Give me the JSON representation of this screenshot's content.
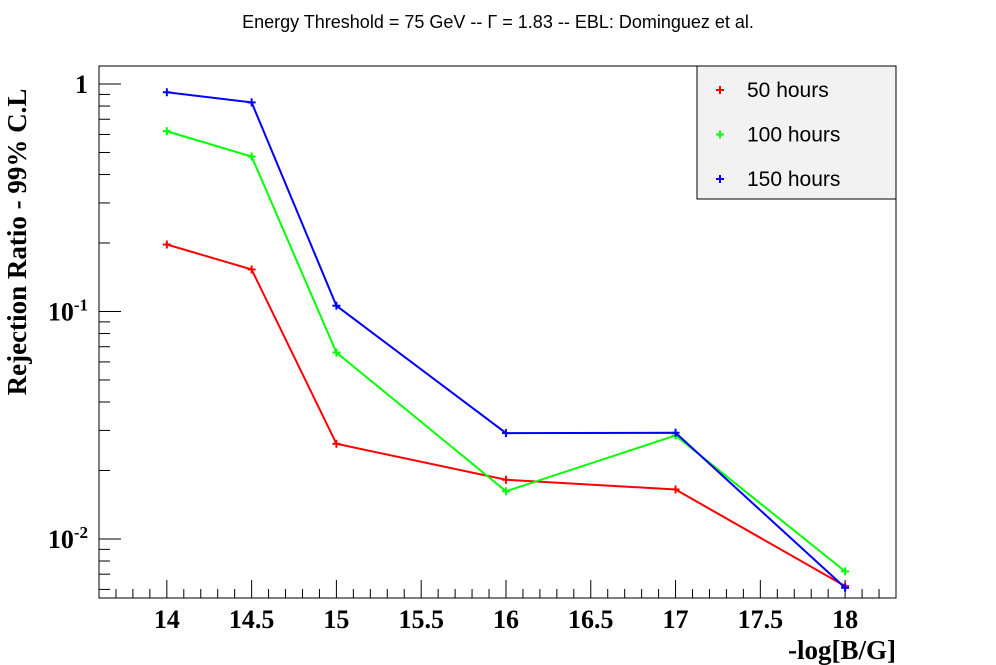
{
  "chart_data": {
    "type": "line",
    "title": "Energy Threshold = 75 GeV -- Γ = 1.83 -- EBL: Dominguez et al.",
    "xlabel": "-log[B/G]",
    "ylabel": "Rejection Ratio - 99% C.L",
    "y_scale": "log",
    "xlim": [
      13.6,
      18.3
    ],
    "ylim": [
      0.0055,
      1.2
    ],
    "x_ticks": [
      "14",
      "14.5",
      "15",
      "15.5",
      "16",
      "16.5",
      "17",
      "17.5",
      "18"
    ],
    "y_ticks": [
      {
        "value": 1,
        "base": "1",
        "exp": ""
      },
      {
        "value": 0.1,
        "base": "10",
        "exp": "-1"
      },
      {
        "value": 0.01,
        "base": "10",
        "exp": "-2"
      }
    ],
    "legend_position": "top-right",
    "series": [
      {
        "name": "50 hours",
        "color": "#ff0000",
        "x": [
          14,
          14.5,
          15,
          16,
          17,
          18
        ],
        "y": [
          0.197,
          0.153,
          0.0262,
          0.0182,
          0.0165,
          0.0062
        ]
      },
      {
        "name": "100 hours",
        "color": "#00ff00",
        "x": [
          14,
          14.5,
          15,
          16,
          17,
          18
        ],
        "y": [
          0.62,
          0.48,
          0.066,
          0.0162,
          0.0285,
          0.0072
        ]
      },
      {
        "name": "150 hours",
        "color": "#0000ff",
        "x": [
          14,
          14.5,
          15,
          16,
          17,
          18
        ],
        "y": [
          0.92,
          0.83,
          0.106,
          0.0292,
          0.0293,
          0.0061
        ]
      }
    ]
  }
}
